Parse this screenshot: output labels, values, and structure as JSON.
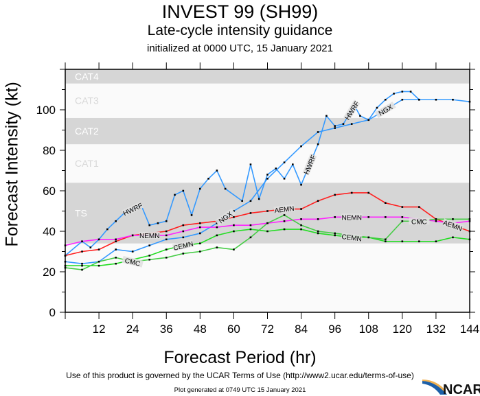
{
  "header": {
    "title": "INVEST 99 (SH99)",
    "subtitle": "Late-cycle intensity guidance",
    "initialized": "initialized at 0000 UTC, 15 January 2021"
  },
  "footer": {
    "terms": "Use of this product is governed by the UCAR Terms of Use (http://www2.ucar.edu/terms-of-use)",
    "generated": "Plot generated at 0749 UTC  15 January 2021",
    "logo": "NCAR"
  },
  "chart_data": {
    "type": "line",
    "xlabel": "Forecast Period (hr)",
    "ylabel": "Forecast Intensity (kt)",
    "xlim": [
      0,
      144
    ],
    "ylim": [
      0,
      120
    ],
    "xticks": [
      "12",
      "24",
      "36",
      "48",
      "60",
      "72",
      "84",
      "96",
      "108",
      "120",
      "132",
      "144"
    ],
    "yticks": [
      "0",
      "20",
      "40",
      "60",
      "80",
      "100"
    ],
    "bands": [
      {
        "name": "TS",
        "from": 34,
        "to": 63,
        "color": "#d6d6d6"
      },
      {
        "name": "CAT1",
        "from": 64,
        "to": 82,
        "color": "#fafafa"
      },
      {
        "name": "CAT2",
        "from": 83,
        "to": 95,
        "color": "#d6d6d6"
      },
      {
        "name": "CAT3",
        "from": 96,
        "to": 112,
        "color": "#fafafa"
      },
      {
        "name": "CAT4",
        "from": 113,
        "to": 136,
        "color": "#d6d6d6"
      }
    ],
    "series": [
      {
        "name": "HWRF",
        "color": "#3399ff",
        "x": [
          0,
          6,
          9,
          12,
          15,
          18,
          21,
          27,
          30,
          33,
          36,
          39,
          42,
          45,
          48,
          51,
          54,
          57,
          63,
          66,
          69,
          72,
          75,
          78,
          81,
          84,
          90,
          93,
          96,
          99,
          103,
          105,
          108,
          111,
          114,
          117,
          120,
          123,
          126
        ],
        "y": [
          28,
          35,
          32,
          36,
          41,
          45,
          49,
          53,
          43,
          44,
          45,
          58,
          60,
          48,
          61,
          66,
          70,
          61,
          55,
          73,
          56,
          68,
          71,
          66,
          73,
          63,
          83,
          97,
          92,
          93,
          102,
          97,
          95,
          101,
          105,
          108,
          109,
          109,
          105
        ]
      },
      {
        "name": "NGX",
        "color": "#3399ff",
        "x": [
          0,
          6,
          12,
          18,
          24,
          30,
          36,
          42,
          48,
          54,
          60,
          66,
          72,
          78,
          84,
          90,
          96,
          102,
          108,
          114,
          120,
          126,
          132,
          138,
          144
        ],
        "y": [
          25,
          24,
          25,
          31,
          30,
          33,
          36,
          37,
          39,
          44,
          50,
          55,
          66,
          74,
          82,
          89,
          91,
          93,
          95,
          100,
          105,
          105,
          105,
          105,
          104
        ]
      },
      {
        "name": "AEMN",
        "color": "#ff2020",
        "x": [
          0,
          6,
          12,
          18,
          24,
          30,
          36,
          42,
          48,
          54,
          60,
          66,
          72,
          78,
          84,
          90,
          96,
          102,
          108,
          114,
          120,
          126,
          132,
          138,
          144
        ],
        "y": [
          28,
          30,
          31,
          35,
          38,
          39,
          40,
          43,
          44,
          45,
          47,
          49,
          50,
          51,
          51,
          55,
          58,
          59,
          59,
          54,
          52,
          52,
          46,
          43,
          40
        ]
      },
      {
        "name": "NEMN",
        "color": "#ff22ff",
        "x": [
          0,
          6,
          12,
          18,
          24,
          30,
          36,
          42,
          48,
          54,
          60,
          66,
          72,
          78,
          84,
          90,
          96,
          102,
          108,
          114,
          120,
          126,
          132,
          138,
          144
        ],
        "y": [
          33,
          35,
          36,
          36,
          38,
          38,
          38,
          40,
          42,
          42,
          43,
          43,
          44,
          45,
          46,
          46,
          47,
          47,
          47,
          47,
          47,
          46,
          45,
          44,
          45
        ]
      },
      {
        "name": "CEMN",
        "color": "#22dd22",
        "x": [
          0,
          6,
          12,
          18,
          24,
          30,
          36,
          42,
          48,
          54,
          60,
          66,
          72,
          78,
          84,
          90,
          96,
          102,
          108,
          114,
          120,
          126,
          132,
          138,
          144
        ],
        "y": [
          23,
          23,
          23,
          24,
          26,
          28,
          31,
          33,
          34,
          38,
          40,
          41,
          40,
          41,
          41,
          39,
          38,
          37,
          37,
          35,
          35,
          35,
          35,
          37,
          36
        ]
      },
      {
        "name": "CMC",
        "color": "#44cc44",
        "x": [
          0,
          6,
          12,
          18,
          24,
          30,
          36,
          42,
          48,
          54,
          60,
          66,
          72,
          78,
          84,
          90,
          96,
          102,
          108,
          114,
          120,
          126,
          132,
          138,
          144
        ],
        "y": [
          22,
          21,
          25,
          27,
          25,
          26,
          27,
          29,
          30,
          32,
          31,
          37,
          44,
          48,
          43,
          40,
          39,
          38,
          37,
          36,
          45,
          45,
          46,
          46,
          46
        ]
      }
    ]
  }
}
